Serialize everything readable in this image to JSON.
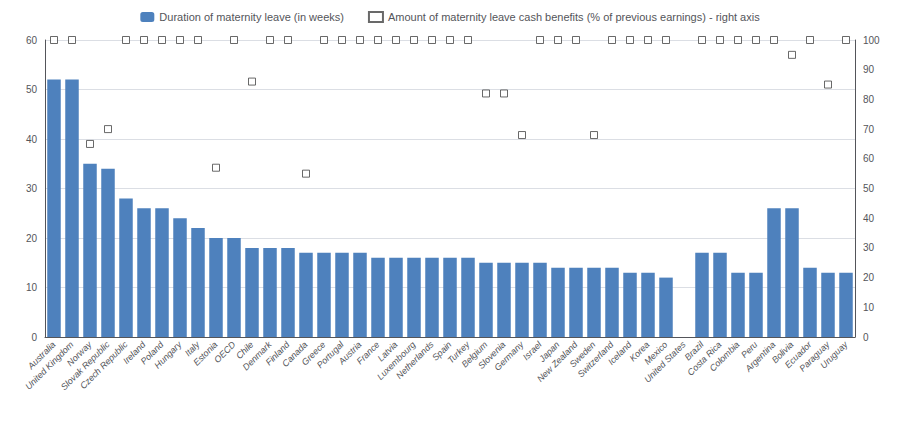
{
  "chart_data": {
    "type": "bar",
    "categories": [
      "Australia",
      "United Kingdom",
      "Norway",
      "Slovak Republic",
      "Czech Republic",
      "Ireland",
      "Poland",
      "Hungary",
      "Italy",
      "Estonia",
      "OECD",
      "Chile",
      "Denmark",
      "Finland",
      "Canada",
      "Greece",
      "Portugal",
      "Austria",
      "France",
      "Latvia",
      "Luxembourg",
      "Netherlands",
      "Spain",
      "Turkey",
      "Belgium",
      "Slovenia",
      "Germany",
      "Israel",
      "Japan",
      "New Zealand",
      "Sweden",
      "Switzerland",
      "Iceland",
      "Korea",
      "Mexico",
      "United States",
      "Brazil",
      "Costa Rica",
      "Colombia",
      "Peru",
      "Argentina",
      "Bolivia",
      "Ecuador",
      "Paraguay",
      "Uruguay"
    ],
    "series": [
      {
        "name": "Duration of maternity leave (in weeks)",
        "type": "bar",
        "color": "#4E81BD",
        "values": [
          52,
          52,
          35,
          34,
          28,
          26,
          26,
          24,
          22,
          20,
          20,
          18,
          18,
          18,
          17,
          17,
          17,
          17,
          16,
          16,
          16,
          16,
          16,
          16,
          15,
          15,
          15,
          15,
          14,
          14,
          14,
          14,
          13,
          13,
          12,
          0,
          17,
          17,
          13,
          13,
          26,
          26,
          14,
          13,
          13
        ]
      },
      {
        "name": "Amount of maternity leave cash benefits (% of previous earnings) - right axis",
        "type": "scatter",
        "axis": "y2",
        "marker": "square",
        "color": "#444444",
        "values": [
          100,
          100,
          65,
          70,
          100,
          100,
          100,
          100,
          100,
          57,
          100,
          86,
          100,
          100,
          55,
          100,
          100,
          100,
          100,
          100,
          100,
          100,
          100,
          100,
          82,
          82,
          68,
          100,
          100,
          100,
          68,
          100,
          100,
          100,
          100,
          null,
          100,
          100,
          100,
          100,
          100,
          95,
          100,
          85,
          100
        ]
      }
    ],
    "ylim": [
      0,
      60
    ],
    "yticks": [
      0,
      10,
      20,
      30,
      40,
      50,
      60
    ],
    "y2lim": [
      0,
      100
    ],
    "y2ticks": [
      0,
      10,
      20,
      30,
      40,
      50,
      60,
      70,
      80,
      90,
      100
    ],
    "grid": true,
    "legend": "top"
  }
}
